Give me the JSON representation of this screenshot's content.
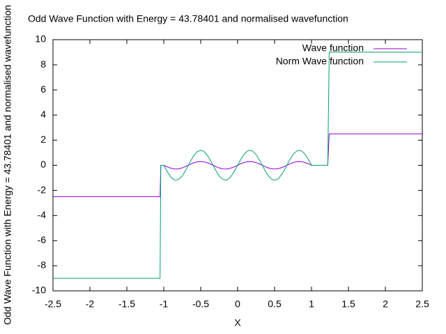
{
  "chart_data": {
    "type": "line",
    "title": "Odd Wave Function with Energy = 43.78401 and normalised wavefunction",
    "x_label": "X",
    "y_label": "Odd Wave Function with Energy = 43.78401 and normalised wavefunction",
    "xlim": [
      -2.5,
      2.5
    ],
    "ylim": [
      -10,
      10
    ],
    "xticks": [
      -2.5,
      -2,
      -1.5,
      -1,
      -0.5,
      0,
      0.5,
      1,
      1.5,
      2,
      2.5
    ],
    "yticks": [
      -10,
      -8,
      -6,
      -4,
      -2,
      0,
      2,
      4,
      6,
      8,
      10
    ],
    "legend": "top-right",
    "x": [
      -2.5,
      -1.05,
      -1.04,
      -1.0,
      -0.95,
      -0.9,
      -0.85,
      -0.8,
      -0.75,
      -0.7,
      -0.65,
      -0.6,
      -0.55,
      -0.5,
      -0.45,
      -0.4,
      -0.35,
      -0.3,
      -0.25,
      -0.2,
      -0.15,
      -0.1,
      -0.05,
      0.0,
      0.05,
      0.1,
      0.15,
      0.2,
      0.25,
      0.3,
      0.35,
      0.4,
      0.45,
      0.5,
      0.55,
      0.6,
      0.65,
      0.7,
      0.75,
      0.8,
      0.85,
      0.9,
      0.95,
      1.0,
      1.22,
      1.24,
      2.5
    ],
    "series": [
      {
        "name": "Wave function",
        "color": "#9400d3",
        "values": [
          -2.5,
          -2.5,
          0,
          0,
          -0.14,
          -0.24,
          -0.3,
          -0.29,
          -0.21,
          -0.09,
          0.05,
          0.18,
          0.27,
          0.3,
          0.27,
          0.18,
          0.05,
          -0.09,
          -0.21,
          -0.29,
          -0.3,
          -0.24,
          -0.14,
          0,
          0.14,
          0.24,
          0.3,
          0.29,
          0.21,
          0.09,
          -0.05,
          -0.18,
          -0.27,
          -0.3,
          -0.27,
          -0.18,
          -0.05,
          0.09,
          0.21,
          0.29,
          0.3,
          0.24,
          0.14,
          0,
          0,
          2.5,
          2.5
        ]
      },
      {
        "name": "Norm Wave function",
        "color": "#009e73",
        "values": [
          -9,
          -9,
          0,
          0,
          -0.54,
          -0.97,
          -1.19,
          -1.14,
          -0.85,
          -0.37,
          0.19,
          0.71,
          1.07,
          1.2,
          1.07,
          0.71,
          0.19,
          -0.37,
          -0.85,
          -1.14,
          -1.19,
          -0.97,
          -0.54,
          0,
          0.54,
          0.97,
          1.19,
          1.14,
          0.85,
          0.37,
          -0.19,
          -0.71,
          -1.07,
          -1.2,
          -1.07,
          -0.71,
          -0.19,
          0.37,
          0.85,
          1.14,
          1.19,
          0.97,
          0.54,
          0,
          0,
          9,
          9
        ]
      }
    ]
  }
}
